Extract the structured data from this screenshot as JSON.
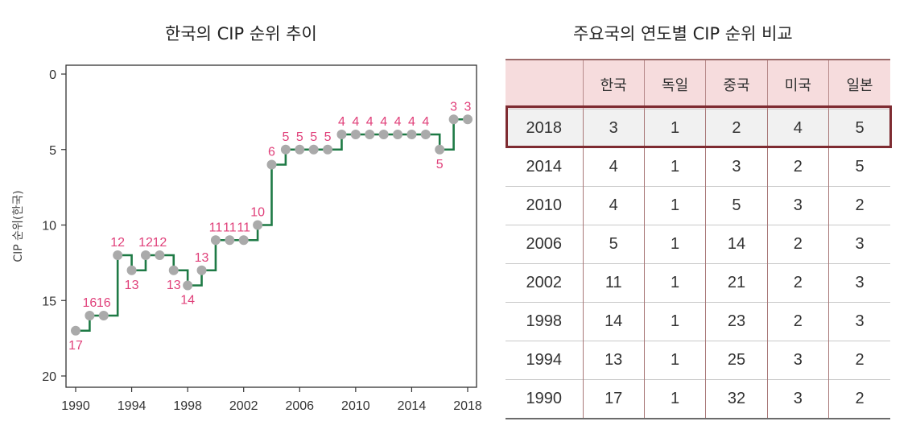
{
  "chart_data": {
    "type": "line",
    "title": "한국의 CIP 순위 추이",
    "ylabel": "CIP 순위(한국)",
    "xlabel": "",
    "step": true,
    "y_inverted": true,
    "ylim": [
      0,
      20
    ],
    "xlim": [
      1990,
      2018
    ],
    "xticks": [
      "1990",
      "1994",
      "1998",
      "2002",
      "2006",
      "2010",
      "2014",
      "2018"
    ],
    "yticks": [
      "0",
      "5",
      "10",
      "15",
      "20"
    ],
    "colors": {
      "line": "#1e7a45",
      "marker": "#aaaaaa",
      "label": "#e0407a"
    },
    "series": [
      {
        "x": [
          1990,
          1991,
          1992,
          1993,
          1994,
          1995,
          1996,
          1997,
          1998,
          1999,
          2000,
          2001,
          2002,
          2003,
          2004,
          2005,
          2006,
          2007,
          2008,
          2009,
          2010,
          2011,
          2012,
          2013,
          2014,
          2015,
          2016,
          2017,
          2018
        ],
        "values": [
          17,
          16,
          16,
          12,
          13,
          12,
          12,
          13,
          14,
          13,
          11,
          11,
          11,
          10,
          6,
          5,
          5,
          5,
          5,
          4,
          4,
          4,
          4,
          4,
          4,
          4,
          5,
          3,
          3
        ]
      }
    ]
  },
  "table": {
    "title": "주요국의 연도별 CIP 순위 비교",
    "headers": [
      "",
      "한국",
      "독일",
      "중국",
      "미국",
      "일본"
    ],
    "highlight_color": "#7e2b31",
    "rows": [
      [
        "2018",
        "3",
        "1",
        "2",
        "4",
        "5"
      ],
      [
        "2014",
        "4",
        "1",
        "3",
        "2",
        "5"
      ],
      [
        "2010",
        "4",
        "1",
        "5",
        "3",
        "2"
      ],
      [
        "2006",
        "5",
        "1",
        "14",
        "2",
        "3"
      ],
      [
        "2002",
        "11",
        "1",
        "21",
        "2",
        "3"
      ],
      [
        "1998",
        "14",
        "1",
        "23",
        "2",
        "3"
      ],
      [
        "1994",
        "13",
        "1",
        "25",
        "3",
        "2"
      ],
      [
        "1990",
        "17",
        "1",
        "32",
        "3",
        "2"
      ]
    ]
  }
}
